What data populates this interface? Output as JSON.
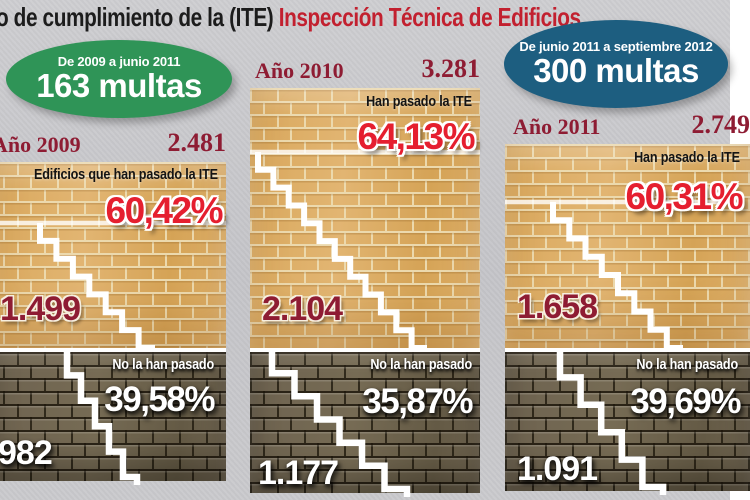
{
  "title": {
    "plain": "o de cumplimiento de la (ITE) ",
    "accent": "Inspección Técnica de Edificios"
  },
  "badges": {
    "green": {
      "period": "De 2009 a junio 2011",
      "value": "163 multas"
    },
    "blue": {
      "period": "De junio 2011 a septiembre 2012",
      "value": "300 multas"
    }
  },
  "columns": [
    {
      "year_label": "Año 2009",
      "total": "2.481",
      "passed_label": "Edificios que han pasado la ITE",
      "passed_pct": "60,42%",
      "passed_count": "1.499",
      "failed_label": "No la han pasado",
      "failed_pct": "39,58%",
      "failed_count": "982"
    },
    {
      "year_label": "Año 2010",
      "total": "3.281",
      "passed_label": "Han pasado la ITE",
      "passed_pct": "64,13%",
      "passed_count": "2.104",
      "failed_label": "No la han pasado",
      "failed_pct": "35,87%",
      "failed_count": "1.177"
    },
    {
      "year_label": "Año 2011",
      "total": "2.749",
      "passed_label": "Han pasado la ITE",
      "passed_pct": "60,31%",
      "passed_count": "1.658",
      "failed_label": "No la han pasado",
      "failed_pct": "39,69%",
      "failed_count": "1.091"
    }
  ],
  "colors": {
    "accent_red": "#c2202f",
    "dark_red": "#8e1c33",
    "bright_red": "#e51f2f",
    "green": "#2f9457",
    "blue": "#1d5e80",
    "tan": "#d9a95e",
    "dark_brick": "#6b604a",
    "background": "#c6c6ca"
  },
  "chart_data": {
    "type": "bar",
    "stacked": true,
    "title": "o de cumplimiento de la (ITE) Inspección Técnica de Edificios",
    "categories": [
      "Año 2009",
      "Año 2010",
      "Año 2011"
    ],
    "totals": [
      2481,
      3281,
      2749
    ],
    "series": [
      {
        "name": "Han pasado la ITE",
        "values": [
          1499,
          2104,
          1658
        ],
        "pct": [
          60.42,
          64.13,
          60.31
        ]
      },
      {
        "name": "No la han pasado",
        "values": [
          982,
          1177,
          1091
        ],
        "pct": [
          39.58,
          35.87,
          39.69
        ]
      }
    ],
    "annotations": [
      {
        "label": "De 2009 a junio 2011",
        "value": "163 multas"
      },
      {
        "label": "De junio 2011 a septiembre 2012",
        "value": "300 multas"
      }
    ],
    "legend_position": "none",
    "grid": false
  }
}
